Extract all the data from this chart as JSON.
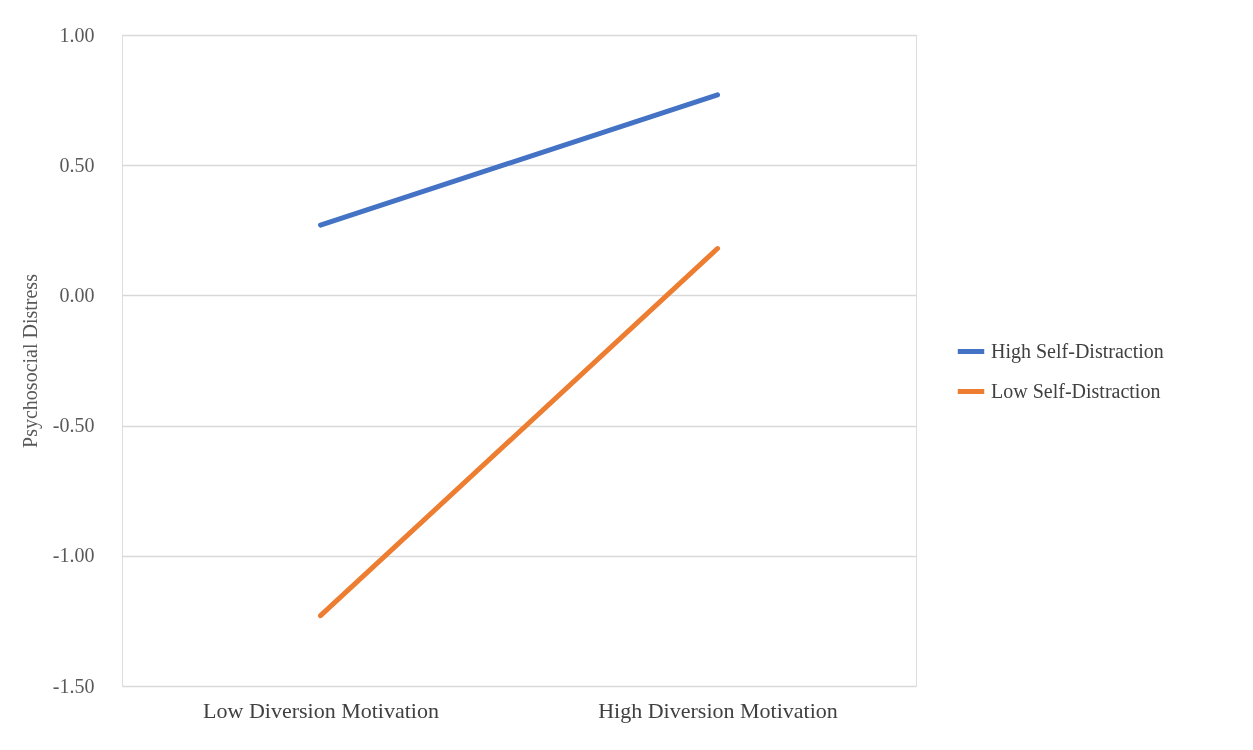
{
  "chart_data": {
    "type": "line",
    "ylabel": "Psychosocial Distress",
    "categories": [
      "Low Diversion Motivation",
      "High Diversion Motivation"
    ],
    "series": [
      {
        "name": "High Self-Distraction",
        "color": "#4472c4",
        "values": [
          0.27,
          0.77
        ]
      },
      {
        "name": "Low Self-Distraction",
        "color": "#ed7d31",
        "values": [
          -1.23,
          0.18
        ]
      }
    ],
    "ylim": [
      -1.5,
      1.0
    ],
    "yticks": [
      {
        "value": -1.5,
        "label": "-1.50"
      },
      {
        "value": -1.0,
        "label": "-1.00"
      },
      {
        "value": -0.5,
        "label": "-0.50"
      },
      {
        "value": 0.0,
        "label": "0.00"
      },
      {
        "value": 0.5,
        "label": "0.50"
      },
      {
        "value": 1.0,
        "label": "1.00"
      }
    ],
    "grid": "y",
    "legend": "right",
    "marker": "none",
    "line_style": "solid"
  }
}
